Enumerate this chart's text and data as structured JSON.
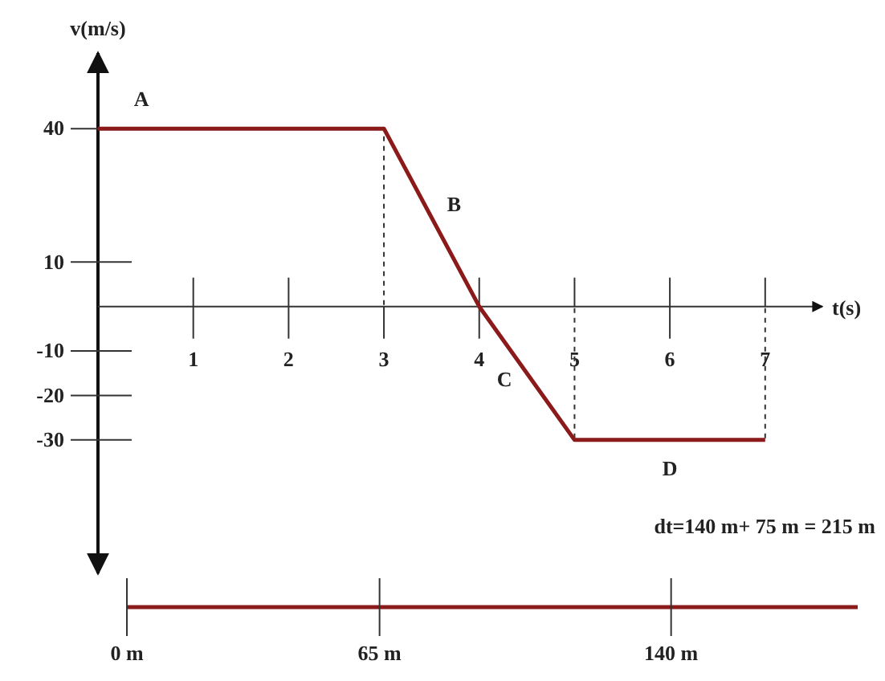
{
  "chart_data": {
    "type": "line",
    "xlabel": "t(s)",
    "ylabel": "v(m/s)",
    "x2label": null,
    "x": [
      0,
      3,
      4,
      5,
      7
    ],
    "series": [
      {
        "color": "#8b1a1a",
        "values": [
          40,
          40,
          0,
          -30,
          -30
        ]
      }
    ],
    "xlim": [
      0,
      7.6
    ],
    "xticks": [
      1,
      2,
      3,
      4,
      5,
      6,
      7
    ],
    "ylim": [
      -60,
      57
    ],
    "yticks": [
      -30,
      -20,
      -10,
      10,
      40
    ],
    "x2lim": [
      0,
      188
    ],
    "x2ticks": [
      {
        "value": 0,
        "label": "0 m"
      },
      {
        "value": 65,
        "label": "65 m"
      },
      {
        "value": 140,
        "label": "140 m"
      }
    ],
    "ref_lines": [
      {
        "axis": "x",
        "value": 3,
        "line_style": "dashed"
      },
      {
        "axis": "x",
        "value": 5,
        "line_style": "dashed"
      },
      {
        "axis": "x",
        "value": 7,
        "line_style": "dashed"
      }
    ],
    "annotations": [
      "A",
      "B",
      "C",
      "D",
      "dt=140 m+ 75 m = 215 m"
    ],
    "grid": false,
    "marker": "none",
    "line_style": "solid"
  }
}
